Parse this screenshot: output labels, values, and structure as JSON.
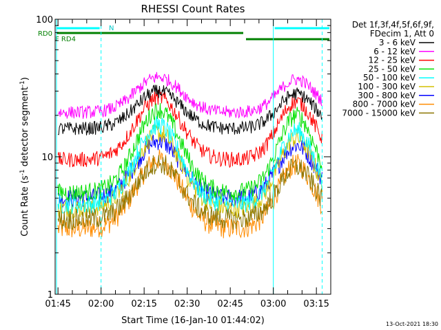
{
  "chart_data": {
    "type": "line",
    "title": "RHESSI Count Rates",
    "xlabel": "Start Time (16-Jan-10 01:44:02)",
    "ylabel_main": "Count Rate (s",
    "ylabel_sup": "-1",
    "ylabel_end": " detector segment",
    "ylabel_sup2": "-1",
    "ylabel_close": ")",
    "y_scale": "log",
    "ylim": [
      1,
      100
    ],
    "y_ticks": [
      {
        "value": 1,
        "label": "1"
      },
      {
        "value": 10,
        "label": "10"
      },
      {
        "value": 100,
        "label": "100"
      }
    ],
    "xlim_minutes": [
      0,
      96
    ],
    "x_ticks": [
      {
        "minute": 1,
        "label": "01:45"
      },
      {
        "minute": 16,
        "label": "02:00"
      },
      {
        "minute": 31,
        "label": "02:15"
      },
      {
        "minute": 46,
        "label": "02:30"
      },
      {
        "minute": 61,
        "label": "02:45"
      },
      {
        "minute": 76,
        "label": "03:00"
      },
      {
        "minute": 91,
        "label": "03:15"
      }
    ],
    "legend_title": [
      "Det 1f,3f,4f,5f,6f,9f,",
      "FDecim 1, Att 0"
    ],
    "legend_position": "right",
    "series": [
      {
        "name": "3 - 6 keV",
        "color": "#000000",
        "base": 16,
        "peak": 30
      },
      {
        "name": "6 - 12 keV",
        "color": "#ff00ff",
        "base": 21,
        "peak": 38
      },
      {
        "name": "12 - 25 keV",
        "color": "#ff0000",
        "base": 9.5,
        "peak": 27
      },
      {
        "name": "25 - 50 keV",
        "color": "#00e000",
        "base": 5.5,
        "peak": 22
      },
      {
        "name": "50 - 100 keV",
        "color": "#00ffff",
        "base": 4.5,
        "peak": 17
      },
      {
        "name": "100 - 300 keV",
        "color": "#d4c000",
        "base": 4.2,
        "peak": 15
      },
      {
        "name": "300 - 800 keV",
        "color": "#0000ff",
        "base": 5.0,
        "peak": 13
      },
      {
        "name": "800 - 7000 keV",
        "color": "#ff8c00",
        "base": 3.0,
        "peak": 9.5
      },
      {
        "name": "7000 - 15000 keV",
        "color": "#8b7500",
        "base": 3.5,
        "peak": 9
      }
    ],
    "peaks_minutes": [
      36,
      84
    ],
    "minimum_minutes": 56,
    "state_bars": [
      {
        "label": "N",
        "color": "#00ffff",
        "segments": [
          [
            0,
            16
          ],
          [
            76,
            96
          ]
        ]
      },
      {
        "label": "RD0",
        "color": "#008000",
        "segments": [
          [
            0,
            66
          ]
        ]
      },
      {
        "label": "F RD4",
        "color": "#008000",
        "segments": [
          [
            66,
            96
          ]
        ]
      }
    ],
    "vertical_lines_minutes": [
      {
        "minute": 16,
        "style": "dashed"
      },
      {
        "minute": 76,
        "style": "solid"
      },
      {
        "minute": 93,
        "style": "dashed"
      }
    ],
    "footer_date": "13-Oct-2021 18:30"
  }
}
